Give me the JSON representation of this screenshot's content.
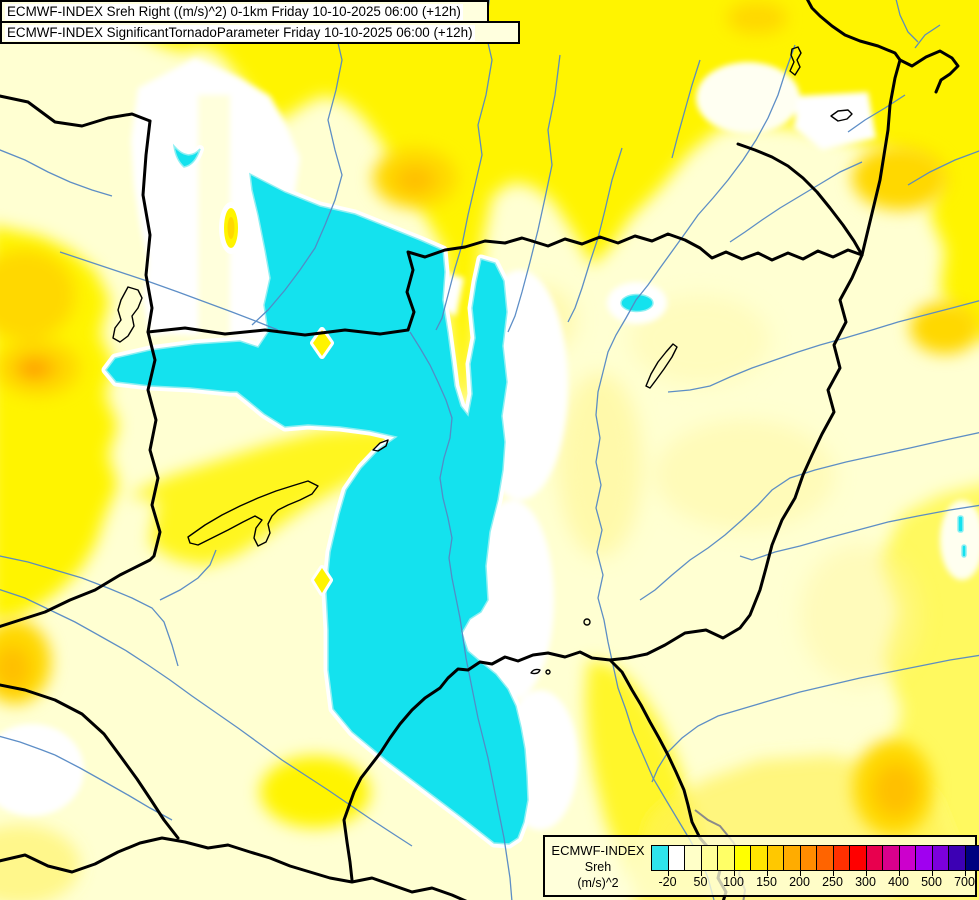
{
  "title_bar": {
    "line1": "ECMWF-INDEX Sreh Right ((m/s)^2) 0-1km Friday 10-10-2025 06:00 (+12h)",
    "line2": "ECMWF-INDEX SignificantTornadoParameter Friday 10-10-2025 06:00 (+12h)"
  },
  "legend": {
    "title_lines": [
      "ECMWF-INDEX",
      "Sreh",
      "(m/s)^2"
    ],
    "colors": [
      "#2EE4EC",
      "#FFFFFF",
      "#FFFFC8",
      "#FFFF99",
      "#FFFF66",
      "#FFFF00",
      "#FFE400",
      "#FFC800",
      "#FFAC00",
      "#FF8C00",
      "#FF6400",
      "#FF3000",
      "#FF0000",
      "#E8004E",
      "#D8008C",
      "#CC00CC",
      "#A000F0",
      "#7C00DC",
      "#3C00B4",
      "#000080"
    ],
    "tick_labels": [
      "-20",
      "50",
      "100",
      "150",
      "200",
      "250",
      "300",
      "400",
      "500",
      "700"
    ],
    "tick_cell_boundaries": [
      1,
      3,
      5,
      7,
      9,
      11,
      13,
      15,
      17,
      19
    ]
  },
  "map": {
    "parameter": "Storm relative helicity 0-1km",
    "colors": {
      "base": "#FFFFD2",
      "cyan": "#14E2EE",
      "cyan_edge": "#8FEFF2",
      "white": "#FFFFFF",
      "yellow": "#FFF400",
      "yellow_soft": "#FFF25A",
      "pale_yellow": "#FFF7A0",
      "gold": "#FFD800",
      "gold_deep": "#FFC000",
      "orange": "#FF9C00",
      "border": "#000000",
      "river": "#5588C4",
      "river_gray": "#8A8A8A"
    }
  }
}
